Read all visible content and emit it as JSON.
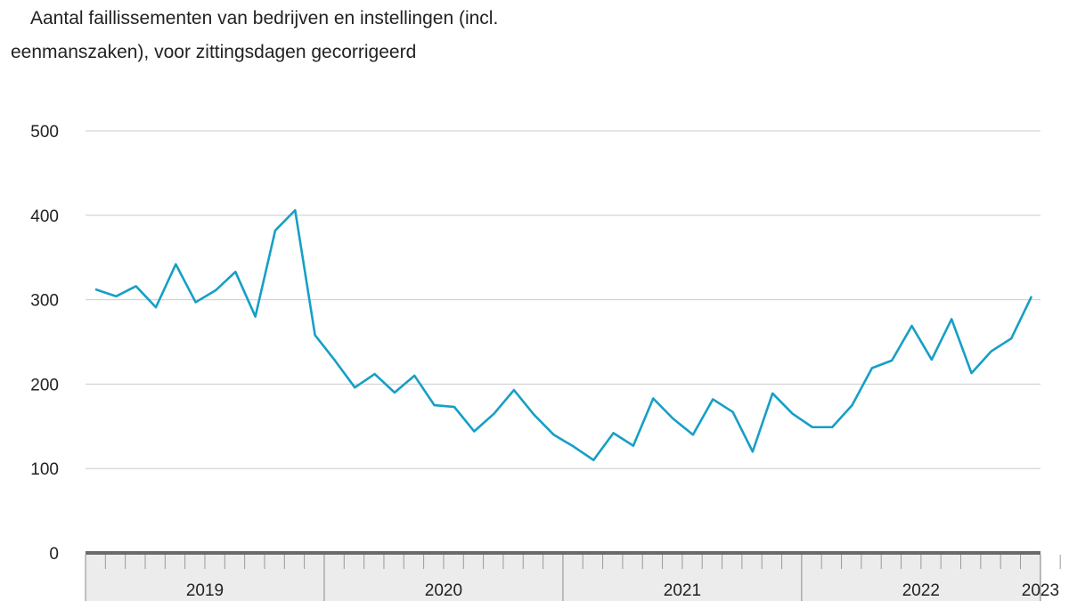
{
  "chart_data": {
    "type": "line",
    "title": "Aantal faillissementen van bedrijven en instellingen (incl. eenmanszaken), voor zittingsdagen gecorrigeerd",
    "xlabel": "",
    "ylabel": "",
    "ylim": [
      0,
      500
    ],
    "yticks": [
      0,
      100,
      200,
      300,
      400,
      500
    ],
    "grid": true,
    "x_start": "2019-01",
    "years": [
      {
        "label": "2019",
        "months": 12
      },
      {
        "label": "2020",
        "months": 12
      },
      {
        "label": "2021",
        "months": 12
      },
      {
        "label": "2022",
        "months": 12
      },
      {
        "label": "2023",
        "months": 6
      }
    ],
    "series": [
      {
        "color": "#169fc6",
        "values": [
          312,
          304,
          316,
          291,
          342,
          297,
          311,
          333,
          280,
          382,
          406,
          258,
          228,
          196,
          212,
          190,
          210,
          175,
          173,
          144,
          165,
          193,
          164,
          140,
          126,
          110,
          142,
          127,
          183,
          159,
          140,
          182,
          167,
          120,
          189,
          165,
          149,
          149,
          175,
          219,
          228,
          269,
          229,
          277,
          213,
          239,
          254,
          303
        ]
      }
    ]
  }
}
